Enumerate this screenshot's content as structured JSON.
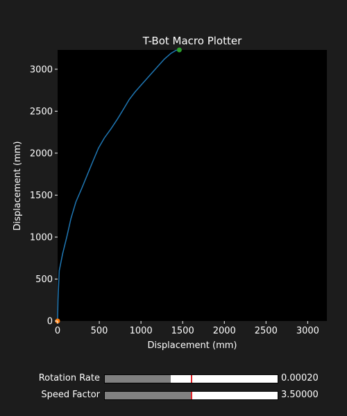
{
  "window": {
    "background": "#1c1c1c"
  },
  "chart_data": {
    "type": "line",
    "title": "T-Bot Macro Plotter",
    "xlabel": "Displacement (mm)",
    "ylabel": "Displacement (mm)",
    "xlim": [
      0,
      3230
    ],
    "ylim": [
      0,
      3230
    ],
    "xticks": [
      0,
      500,
      1000,
      1500,
      2000,
      2500,
      3000
    ],
    "yticks": [
      0,
      500,
      1000,
      1500,
      2000,
      2500,
      3000
    ],
    "grid": false,
    "plot_background": "#000000",
    "series": [
      {
        "color": "#1f77b4",
        "x": [
          0,
          5,
          20,
          60,
          110,
          160,
          220,
          290,
          360,
          430,
          490,
          560,
          640,
          720,
          800,
          860,
          930,
          1010,
          1100,
          1190,
          1280,
          1360,
          1420,
          1460
        ],
        "y": [
          0,
          250,
          600,
          800,
          1000,
          1220,
          1420,
          1580,
          1750,
          1920,
          2060,
          2180,
          2290,
          2410,
          2540,
          2640,
          2730,
          2820,
          2920,
          3020,
          3120,
          3190,
          3225,
          3230
        ]
      }
    ],
    "markers": [
      {
        "x": 0,
        "y": 0,
        "color": "#ff7f0e"
      },
      {
        "x": 1460,
        "y": 3230,
        "color": "#2ca02c"
      }
    ]
  },
  "sliders": [
    {
      "label": "Rotation Rate",
      "value_text": "0.00020",
      "fraction": 0.38,
      "initial_fraction": 0.5,
      "fill_color": "#808080",
      "initial_marker_color": "#e0252a"
    },
    {
      "label": "Speed Factor",
      "value_text": "3.50000",
      "fraction": 0.5,
      "initial_fraction": 0.5,
      "fill_color": "#808080",
      "initial_marker_color": "#e0252a"
    }
  ]
}
